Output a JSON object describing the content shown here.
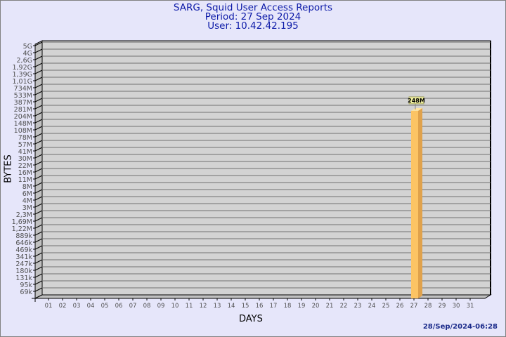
{
  "chart_data": {
    "type": "bar",
    "title": "SARG, Squid User Access Reports",
    "subtitle": [
      "Period: 27 Sep 2024",
      "User: 10.42.42.195"
    ],
    "xlabel": "DAYS",
    "ylabel": "BYTES",
    "y_scale": "log",
    "grid": true,
    "categories": [
      "01",
      "02",
      "03",
      "04",
      "05",
      "06",
      "07",
      "08",
      "09",
      "10",
      "11",
      "12",
      "13",
      "14",
      "15",
      "16",
      "17",
      "18",
      "19",
      "20",
      "21",
      "22",
      "23",
      "24",
      "25",
      "26",
      "27",
      "28",
      "29",
      "30",
      "31"
    ],
    "series": [
      {
        "values": {
          "27": 248000000
        }
      }
    ],
    "data_labels": {
      "27": "248M"
    },
    "y_ticks": [
      {
        "label": "5G",
        "value": 5000000000
      },
      {
        "label": "4G",
        "value": 4000000000
      },
      {
        "label": "2,6G",
        "value": 2600000000
      },
      {
        "label": "1,92G",
        "value": 1920000000
      },
      {
        "label": "1,39G",
        "value": 1390000000
      },
      {
        "label": "1,01G",
        "value": 1010000000
      },
      {
        "label": "734M",
        "value": 734000000
      },
      {
        "label": "533M",
        "value": 533000000
      },
      {
        "label": "387M",
        "value": 387000000
      },
      {
        "label": "281M",
        "value": 281000000
      },
      {
        "label": "204M",
        "value": 204000000
      },
      {
        "label": "148M",
        "value": 148000000
      },
      {
        "label": "108M",
        "value": 108000000
      },
      {
        "label": "78M",
        "value": 78000000
      },
      {
        "label": "57M",
        "value": 57000000
      },
      {
        "label": "41M",
        "value": 41000000
      },
      {
        "label": "30M",
        "value": 30000000
      },
      {
        "label": "22M",
        "value": 22000000
      },
      {
        "label": "16M",
        "value": 16000000
      },
      {
        "label": "11M",
        "value": 11000000
      },
      {
        "label": "8M",
        "value": 8000000
      },
      {
        "label": "6M",
        "value": 6000000
      },
      {
        "label": "4M",
        "value": 4000000
      },
      {
        "label": "3M",
        "value": 3000000
      },
      {
        "label": "2,3M",
        "value": 2300000
      },
      {
        "label": "1,69M",
        "value": 1690000
      },
      {
        "label": "1,22M",
        "value": 1220000
      },
      {
        "label": "889k",
        "value": 889000
      },
      {
        "label": "646k",
        "value": 646000
      },
      {
        "label": "469k",
        "value": 469000
      },
      {
        "label": "341k",
        "value": 341000
      },
      {
        "label": "247k",
        "value": 247000
      },
      {
        "label": "180k",
        "value": 180000
      },
      {
        "label": "131k",
        "value": 131000
      },
      {
        "label": "95k",
        "value": 95000
      },
      {
        "label": "69k",
        "value": 69000
      }
    ],
    "colors": {
      "bar_front": "#fcc464",
      "bar_side": "#e0a24c",
      "bar_top": "#fde4a0",
      "wall": "#d3d3d3",
      "side_wall": "#c0c0c0",
      "grid": "#707070",
      "label_box": "#f0f0a0"
    }
  },
  "footer": "28/Sep/2024-06:28"
}
